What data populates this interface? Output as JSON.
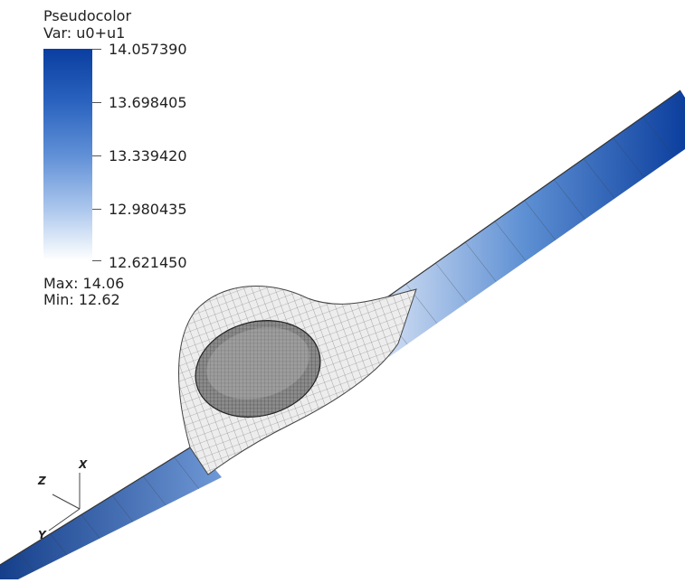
{
  "legend": {
    "plot_type": "Pseudocolor",
    "variable": "Var: u0+u1",
    "max_label": "Max:  14.06",
    "min_label": "Min:  12.62",
    "ticks": [
      "14.057390",
      "13.698405",
      "13.339420",
      "12.980435",
      "12.621450"
    ],
    "gradient_colors": [
      "#0a3ea0",
      "#2a63bf",
      "#5f8fd6",
      "#a9c5ec",
      "#ffffff"
    ]
  },
  "triad": {
    "x_label": "X",
    "y_label": "Y",
    "z_label": "Z"
  }
}
